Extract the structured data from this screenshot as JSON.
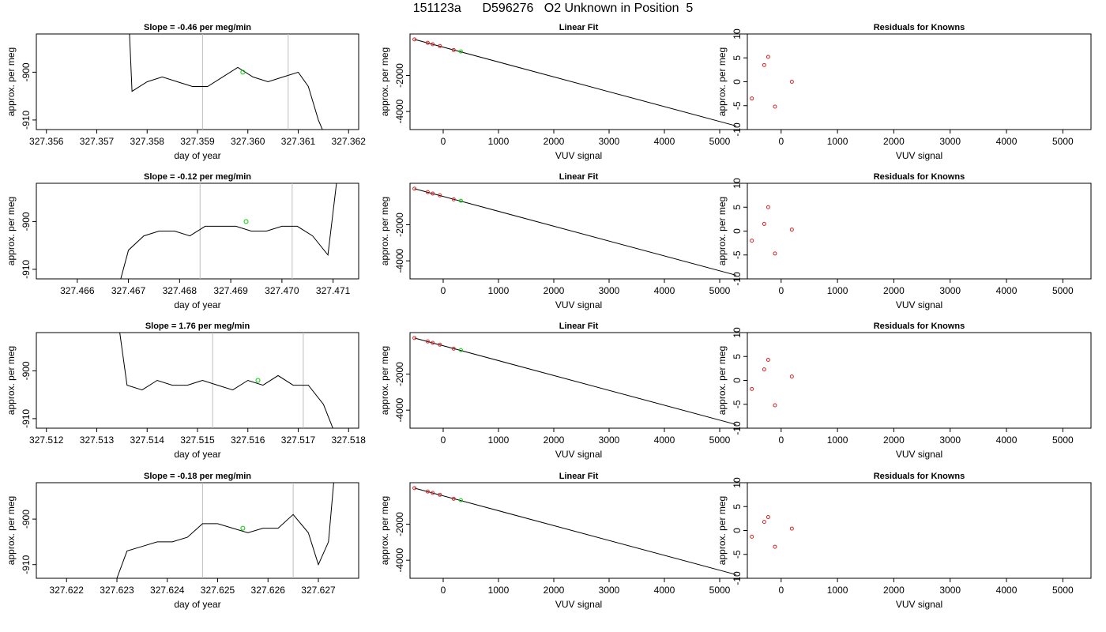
{
  "title": "151123a      D596276   O2 Unknown in Position  5",
  "colors": {
    "line": "#000000",
    "known": "#d62728",
    "unknown": "#00cc00",
    "vline": "#bdbdbd",
    "frame": "#000000"
  },
  "chart_data": [
    {
      "type": "line",
      "row": 0,
      "col": 0,
      "title": "Slope =  -0.46  per meg/min",
      "xlabel": "day of year",
      "ylabel": "approx. per meg",
      "xlim": [
        327.3558,
        327.3622
      ],
      "ylim": [
        -912,
        -892
      ],
      "x_ticks": [
        327.356,
        327.357,
        327.358,
        327.359,
        327.36,
        327.361,
        327.362
      ],
      "y_ticks": [
        -910,
        -900
      ],
      "vlines": [
        327.3591,
        327.3608
      ],
      "marker": {
        "x": 327.3599,
        "y": -900
      },
      "series": [
        {
          "x": [
            327.3576,
            327.3577,
            327.358,
            327.3583,
            327.3586,
            327.3589,
            327.3592,
            327.3595,
            327.3598,
            327.3601,
            327.3604,
            327.3607,
            327.361,
            327.3612,
            327.3614,
            327.3616
          ],
          "y": [
            -880,
            -904,
            -902,
            -901,
            -902,
            -903,
            -903,
            -901,
            -899,
            -901,
            -902,
            -901,
            -900,
            -903,
            -910,
            -915
          ]
        }
      ]
    },
    {
      "type": "scatter",
      "row": 0,
      "col": 1,
      "title": "Linear Fit",
      "xlabel": "VUV signal",
      "ylabel": "approx. per meg",
      "xlim": [
        -600,
        5500
      ],
      "ylim": [
        -5000,
        300
      ],
      "x_ticks": [
        0,
        1000,
        2000,
        3000,
        4000,
        5000
      ],
      "y_ticks": [
        -4000,
        -2000
      ],
      "fit_line": {
        "x": [
          -520,
          5300
        ],
        "y": [
          0,
          -4800
        ]
      },
      "known_points": {
        "x": [
          -520,
          -280,
          -190,
          -60,
          190
        ],
        "y": [
          0,
          -190,
          -270,
          -370,
          -590
        ]
      },
      "unknown_points": {
        "x": [
          320
        ],
        "y": [
          -670
        ]
      }
    },
    {
      "type": "scatter",
      "row": 0,
      "col": 2,
      "title": "Residuals for Knowns",
      "xlabel": "VUV signal",
      "ylabel": "approx. per meg",
      "xlim": [
        -600,
        5500
      ],
      "ylim": [
        -10,
        10
      ],
      "x_ticks": [
        0,
        1000,
        2000,
        3000,
        4000,
        5000
      ],
      "y_ticks": [
        -10,
        -5,
        0,
        5,
        10
      ],
      "points": {
        "x": [
          -520,
          -300,
          -230,
          -110,
          190
        ],
        "y": [
          -3.5,
          3.5,
          5.2,
          -5.2,
          0
        ]
      }
    },
    {
      "type": "line",
      "row": 1,
      "col": 0,
      "title": "Slope =  -0.12  per meg/min",
      "xlabel": "day of year",
      "ylabel": "approx. per meg",
      "xlim": [
        327.4652,
        327.4715
      ],
      "ylim": [
        -912,
        -892
      ],
      "x_ticks": [
        327.466,
        327.467,
        327.468,
        327.469,
        327.47,
        327.471
      ],
      "y_ticks": [
        -910,
        -900
      ],
      "vlines": [
        327.4684,
        327.4702
      ],
      "marker": {
        "x": 327.4693,
        "y": -900
      },
      "series": [
        {
          "x": [
            327.4668,
            327.467,
            327.4673,
            327.4676,
            327.4679,
            327.4682,
            327.4685,
            327.4688,
            327.4691,
            327.4694,
            327.4697,
            327.47,
            327.4703,
            327.4706,
            327.4709,
            327.4712
          ],
          "y": [
            -914,
            -906,
            -903,
            -902,
            -902,
            -903,
            -901,
            -901,
            -901,
            -902,
            -902,
            -901,
            -901,
            -903,
            -907,
            -880
          ]
        }
      ]
    },
    {
      "type": "scatter",
      "row": 1,
      "col": 1,
      "title": "Linear Fit",
      "xlabel": "VUV signal",
      "ylabel": "approx. per meg",
      "xlim": [
        -600,
        5500
      ],
      "ylim": [
        -5000,
        300
      ],
      "x_ticks": [
        0,
        1000,
        2000,
        3000,
        4000,
        5000
      ],
      "y_ticks": [
        -4000,
        -2000
      ],
      "fit_line": {
        "x": [
          -520,
          5300
        ],
        "y": [
          0,
          -4800
        ]
      },
      "known_points": {
        "x": [
          -520,
          -280,
          -190,
          -60,
          190
        ],
        "y": [
          0,
          -190,
          -270,
          -370,
          -590
        ]
      },
      "unknown_points": {
        "x": [
          320
        ],
        "y": [
          -670
        ]
      }
    },
    {
      "type": "scatter",
      "row": 1,
      "col": 2,
      "title": "Residuals for Knowns",
      "xlabel": "VUV signal",
      "ylabel": "approx. per meg",
      "xlim": [
        -600,
        5500
      ],
      "ylim": [
        -10,
        10
      ],
      "x_ticks": [
        0,
        1000,
        2000,
        3000,
        4000,
        5000
      ],
      "y_ticks": [
        -10,
        -5,
        0,
        5,
        10
      ],
      "points": {
        "x": [
          -520,
          -300,
          -230,
          -110,
          190
        ],
        "y": [
          -2,
          1.5,
          5,
          -4.7,
          0.3
        ]
      }
    },
    {
      "type": "line",
      "row": 2,
      "col": 0,
      "title": "Slope =  1.76  per meg/min",
      "xlabel": "day of year",
      "ylabel": "approx. per meg",
      "xlim": [
        327.5118,
        327.5182
      ],
      "ylim": [
        -912,
        -892
      ],
      "x_ticks": [
        327.512,
        327.513,
        327.514,
        327.515,
        327.516,
        327.517,
        327.518
      ],
      "y_ticks": [
        -910,
        -900
      ],
      "vlines": [
        327.5153,
        327.5171
      ],
      "marker": {
        "x": 327.5162,
        "y": -902
      },
      "series": [
        {
          "x": [
            327.5133,
            327.5136,
            327.5139,
            327.5142,
            327.5145,
            327.5148,
            327.5151,
            327.5154,
            327.5157,
            327.516,
            327.5163,
            327.5166,
            327.5169,
            327.5172,
            327.5175,
            327.5178
          ],
          "y": [
            -880,
            -903,
            -904,
            -902,
            -903,
            -903,
            -902,
            -903,
            -904,
            -902,
            -903,
            -901,
            -903,
            -903,
            -907,
            -915
          ]
        }
      ]
    },
    {
      "type": "scatter",
      "row": 2,
      "col": 1,
      "title": "Linear Fit",
      "xlabel": "VUV signal",
      "ylabel": "approx. per meg",
      "xlim": [
        -600,
        5500
      ],
      "ylim": [
        -5000,
        300
      ],
      "x_ticks": [
        0,
        1000,
        2000,
        3000,
        4000,
        5000
      ],
      "y_ticks": [
        -4000,
        -2000
      ],
      "fit_line": {
        "x": [
          -520,
          5300
        ],
        "y": [
          0,
          -4800
        ]
      },
      "known_points": {
        "x": [
          -520,
          -280,
          -190,
          -60,
          190
        ],
        "y": [
          0,
          -190,
          -270,
          -370,
          -590
        ]
      },
      "unknown_points": {
        "x": [
          320
        ],
        "y": [
          -670
        ]
      }
    },
    {
      "type": "scatter",
      "row": 2,
      "col": 2,
      "title": "Residuals for Knowns",
      "xlabel": "VUV signal",
      "ylabel": "approx. per meg",
      "xlim": [
        -600,
        5500
      ],
      "ylim": [
        -10,
        10
      ],
      "x_ticks": [
        0,
        1000,
        2000,
        3000,
        4000,
        5000
      ],
      "y_ticks": [
        -10,
        -5,
        0,
        5,
        10
      ],
      "points": {
        "x": [
          -520,
          -300,
          -230,
          -110,
          190
        ],
        "y": [
          -1.8,
          2.3,
          4.3,
          -5.2,
          0.8
        ]
      }
    },
    {
      "type": "line",
      "row": 3,
      "col": 0,
      "title": "Slope =  -0.18  per meg/min",
      "xlabel": "day of year",
      "ylabel": "approx. per meg",
      "xlim": [
        327.6214,
        327.6278
      ],
      "ylim": [
        -913,
        -892
      ],
      "x_ticks": [
        327.622,
        327.623,
        327.624,
        327.625,
        327.626,
        327.627
      ],
      "y_ticks": [
        -910,
        -900
      ],
      "vlines": [
        327.6247,
        327.6265
      ],
      "marker": {
        "x": 327.6255,
        "y": -902
      },
      "series": [
        {
          "x": [
            327.623,
            327.6232,
            327.6235,
            327.6238,
            327.6241,
            327.6244,
            327.6247,
            327.625,
            327.6253,
            327.6256,
            327.6259,
            327.6262,
            327.6265,
            327.6268,
            327.627,
            327.6272,
            327.6274
          ],
          "y": [
            -913,
            -907,
            -906,
            -905,
            -905,
            -904,
            -901,
            -901,
            -902,
            -903,
            -902,
            -902,
            -899,
            -903,
            -910,
            -905,
            -880
          ]
        }
      ]
    },
    {
      "type": "scatter",
      "row": 3,
      "col": 1,
      "title": "Linear Fit",
      "xlabel": "VUV signal",
      "ylabel": "approx. per meg",
      "xlim": [
        -600,
        5500
      ],
      "ylim": [
        -5000,
        300
      ],
      "x_ticks": [
        0,
        1000,
        2000,
        3000,
        4000,
        5000
      ],
      "y_ticks": [
        -4000,
        -2000
      ],
      "fit_line": {
        "x": [
          -520,
          5300
        ],
        "y": [
          0,
          -4800
        ]
      },
      "known_points": {
        "x": [
          -520,
          -280,
          -190,
          -60,
          190
        ],
        "y": [
          0,
          -190,
          -270,
          -370,
          -590
        ]
      },
      "unknown_points": {
        "x": [
          320
        ],
        "y": [
          -670
        ]
      }
    },
    {
      "type": "scatter",
      "row": 3,
      "col": 2,
      "title": "Residuals for Knowns",
      "xlabel": "VUV signal",
      "ylabel": "approx. per meg",
      "xlim": [
        -600,
        5500
      ],
      "ylim": [
        -10,
        10
      ],
      "x_ticks": [
        0,
        1000,
        2000,
        3000,
        4000,
        5000
      ],
      "y_ticks": [
        -10,
        -5,
        0,
        5,
        10
      ],
      "points": {
        "x": [
          -520,
          -300,
          -230,
          -110,
          190
        ],
        "y": [
          -1.3,
          1.8,
          2.8,
          -3.4,
          0.4
        ]
      }
    }
  ]
}
